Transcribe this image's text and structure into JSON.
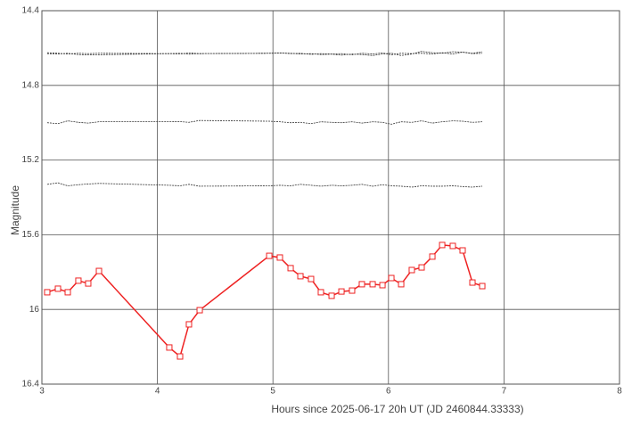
{
  "chart_data": {
    "type": "line",
    "xlabel": "Hours since 2025-06-17 20h UT (JD 2460844.33333)",
    "ylabel": "Magnitude",
    "xlim": [
      3,
      8
    ],
    "xticks": [
      3,
      4,
      5,
      6,
      7,
      8
    ],
    "ylim": [
      16.4,
      14.4
    ],
    "yticks": [
      14.4,
      14.8,
      15.2,
      15.6,
      16,
      16.4
    ],
    "grid": true,
    "x": [
      3.046,
      3.139,
      3.224,
      3.316,
      3.401,
      3.494,
      4.103,
      4.196,
      4.273,
      4.366,
      4.968,
      5.06,
      5.153,
      5.238,
      5.33,
      5.415,
      5.508,
      5.593,
      5.685,
      5.77,
      5.863,
      5.948,
      6.025,
      6.11,
      6.202,
      6.287,
      6.38,
      6.465,
      6.557,
      6.642,
      6.727,
      6.812
    ],
    "series": [
      {
        "color": "#333333",
        "markers": false,
        "values": [
          14.63,
          14.632,
          14.628,
          14.635,
          14.637,
          14.636,
          14.63,
          14.628,
          14.633,
          14.63,
          14.628,
          14.627,
          14.628,
          14.632,
          14.63,
          14.635,
          14.633,
          14.638,
          14.632,
          14.635,
          14.64,
          14.632,
          14.628,
          14.64,
          14.632,
          14.618,
          14.625,
          14.628,
          14.62,
          14.622,
          14.63,
          14.628
        ]
      },
      {
        "color": "#333333",
        "markers": false,
        "values": [
          14.625,
          14.628,
          14.632,
          14.628,
          14.63,
          14.628,
          14.63,
          14.632,
          14.626,
          14.63,
          14.628,
          14.626,
          14.63,
          14.628,
          14.634,
          14.63,
          14.632,
          14.63,
          14.636,
          14.628,
          14.632,
          14.626,
          14.636,
          14.628,
          14.63,
          14.628,
          14.632,
          14.625,
          14.632,
          14.622,
          14.628,
          14.62
        ]
      },
      {
        "color": "#333333",
        "markers": false,
        "values": [
          15.0,
          15.005,
          14.99,
          14.998,
          15.002,
          14.995,
          14.995,
          14.994,
          14.998,
          14.988,
          14.992,
          14.995,
          15.0,
          14.998,
          15.005,
          14.995,
          14.998,
          15.0,
          14.995,
          15.002,
          14.995,
          14.998,
          15.008,
          14.995,
          14.998,
          14.99,
          15.002,
          14.995,
          14.99,
          14.992,
          14.998,
          14.995
        ]
      },
      {
        "color": "#333333",
        "markers": false,
        "values": [
          15.33,
          15.322,
          15.338,
          15.332,
          15.328,
          15.325,
          15.335,
          15.338,
          15.33,
          15.34,
          15.338,
          15.335,
          15.338,
          15.33,
          15.335,
          15.34,
          15.335,
          15.338,
          15.335,
          15.33,
          15.34,
          15.332,
          15.338,
          15.34,
          15.345,
          15.338,
          15.34,
          15.34,
          15.338,
          15.342,
          15.345,
          15.34
        ]
      },
      {
        "color": "#ee2222",
        "markers": true,
        "values": [
          15.908,
          15.889,
          15.908,
          15.846,
          15.861,
          15.794,
          16.204,
          16.252,
          16.08,
          16.004,
          15.713,
          15.722,
          15.779,
          15.822,
          15.837,
          15.908,
          15.927,
          15.904,
          15.899,
          15.865,
          15.865,
          15.87,
          15.832,
          15.865,
          15.789,
          15.775,
          15.717,
          15.655,
          15.66,
          15.684,
          15.856,
          15.875
        ]
      }
    ]
  }
}
